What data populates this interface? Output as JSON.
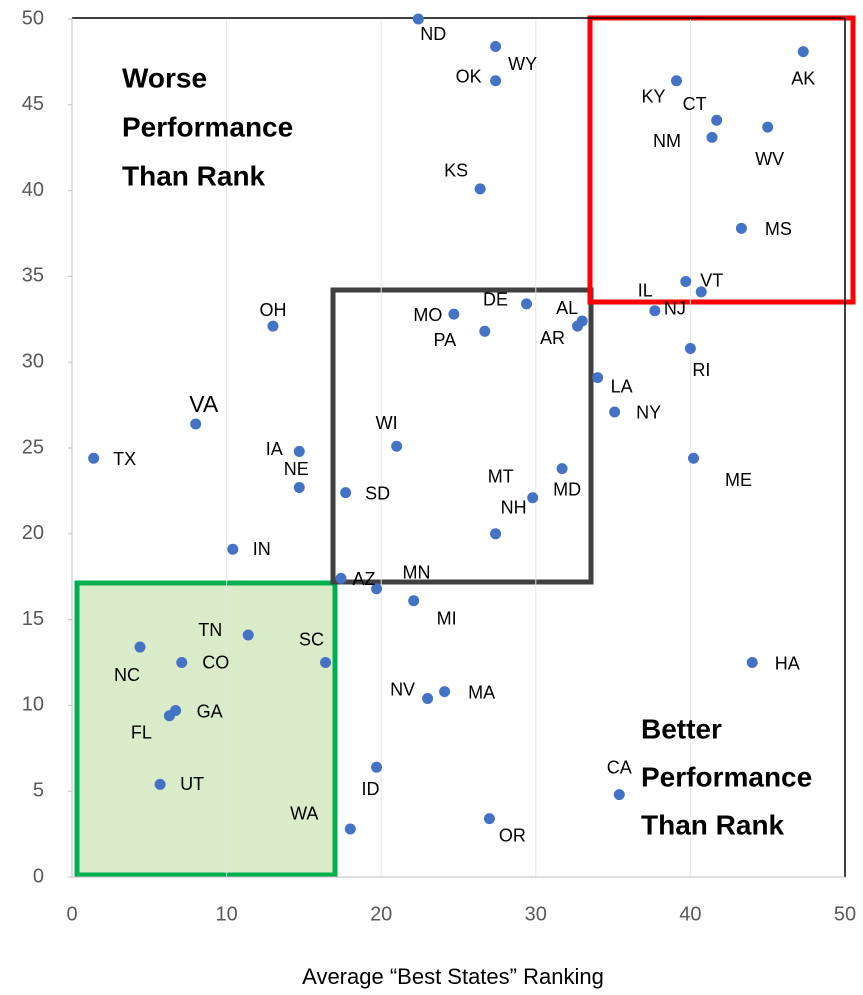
{
  "chart_data": {
    "type": "scatter",
    "x_label": "Average “Best States” Ranking",
    "annotations": [
      "Worse",
      "Performance",
      "Than Rank",
      "Better",
      "Performance",
      "Than Rank"
    ],
    "xlim": [
      0,
      50
    ],
    "xticks": [
      0,
      10,
      20,
      30,
      40,
      50
    ],
    "ylim": [
      0,
      50
    ],
    "yticks": [
      0,
      5,
      10,
      15,
      20,
      25,
      30,
      35,
      40,
      45,
      50
    ],
    "color": "#4472c4",
    "point_labels": [
      "ND",
      "WY",
      "OK",
      "KS",
      "AK",
      "KY",
      "CT",
      "NM",
      "WV",
      "MS",
      "VT",
      "IL",
      "NJ",
      "RI",
      "LA",
      "NY",
      "ME",
      "HA",
      "CA",
      "OR",
      "ID",
      "WA",
      "NV",
      "MA",
      "MI",
      "MN",
      "AZ",
      "SC",
      "TN",
      "NC",
      "CO",
      "GA",
      "FL",
      "UT",
      "IN",
      "TX",
      "VA",
      "IA",
      "NE",
      "SD",
      "OH",
      "WI",
      "MO",
      "PA",
      "DE",
      "AL",
      "AR",
      "MT",
      "MD",
      "NH"
    ],
    "x": [
      22.4,
      27.4,
      27.4,
      26.4,
      47.3,
      39.1,
      41.7,
      41.4,
      45.0,
      43.3,
      39.7,
      40.7,
      37.7,
      40.0,
      34.0,
      35.1,
      40.2,
      44.0,
      35.4,
      27.0,
      19.7,
      18.0,
      23.0,
      24.1,
      22.1,
      19.7,
      17.4,
      16.4,
      11.4,
      4.4,
      7.1,
      6.7,
      6.3,
      5.7,
      10.4,
      1.4,
      8.0,
      14.7,
      14.7,
      17.7,
      13.0,
      21.0,
      24.7,
      26.7,
      29.4,
      33.0,
      32.7,
      29.8,
      31.7,
      27.4
    ],
    "values": [
      50.0,
      48.4,
      46.4,
      40.1,
      48.1,
      46.4,
      44.1,
      43.1,
      43.7,
      37.8,
      34.7,
      34.1,
      33.0,
      30.8,
      29.1,
      27.1,
      24.4,
      12.5,
      4.8,
      3.4,
      6.4,
      2.8,
      10.4,
      10.8,
      16.1,
      16.8,
      17.4,
      12.5,
      14.1,
      13.4,
      12.5,
      9.7,
      9.4,
      5.4,
      19.1,
      24.4,
      26.4,
      24.8,
      22.7,
      22.4,
      32.1,
      25.1,
      32.8,
      31.8,
      33.4,
      32.4,
      32.1,
      22.1,
      23.8,
      20.0
    ]
  }
}
